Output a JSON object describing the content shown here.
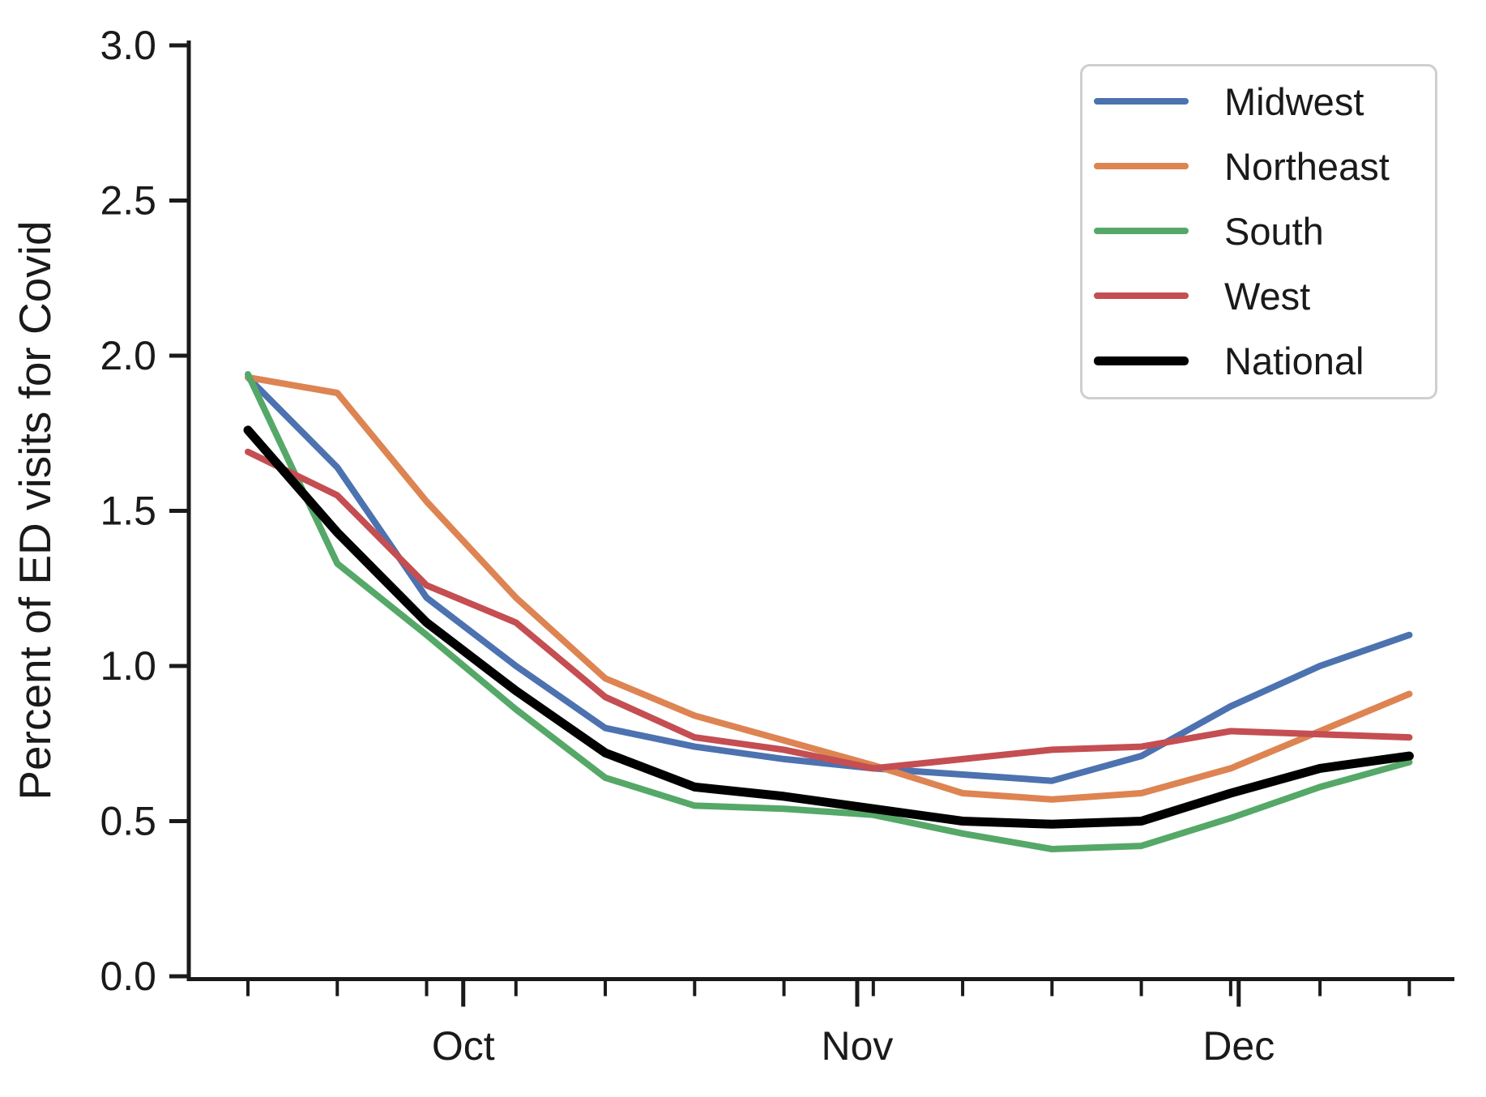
{
  "figure": {
    "background": "#ffffff",
    "axis_color": "#1a1a1a",
    "text_color": "#1a1a1a",
    "legend_border_color": "#cfcfcf"
  },
  "chart_data": {
    "type": "line",
    "title": "",
    "xlabel": "",
    "ylabel": "Percent of ED visits for Covid",
    "ylim": [
      0.0,
      3.0
    ],
    "grid": false,
    "legend_position": "upper right",
    "y_ticks": [
      {
        "value": 0.0,
        "label": "0.0"
      },
      {
        "value": 0.5,
        "label": "0.5"
      },
      {
        "value": 1.0,
        "label": "1.0"
      },
      {
        "value": 1.5,
        "label": "1.5"
      },
      {
        "value": 2.0,
        "label": "2.0"
      },
      {
        "value": 2.5,
        "label": "2.5"
      },
      {
        "value": 3.0,
        "label": "3.0"
      }
    ],
    "x_unit": "weekly data points (14 weeks), shown via minor ticks",
    "x": [
      0,
      1,
      2,
      3,
      4,
      5,
      6,
      7,
      8,
      9,
      10,
      11,
      12,
      13
    ],
    "x_minor_ticks_weeks": [
      0,
      1,
      2,
      3,
      4,
      5,
      6,
      7,
      8,
      9,
      10,
      11,
      12,
      13
    ],
    "x_major_ticks": [
      {
        "label": "Oct",
        "week": 2.41
      },
      {
        "label": "Nov",
        "week": 6.82
      },
      {
        "label": "Dec",
        "week": 11.09
      }
    ],
    "series": [
      {
        "name": "Midwest",
        "color": "#4C72B0",
        "line_width": 8,
        "values": [
          1.93,
          1.64,
          1.22,
          1.0,
          0.8,
          0.74,
          0.7,
          0.67,
          0.65,
          0.63,
          0.71,
          0.87,
          1.0,
          1.1
        ]
      },
      {
        "name": "Northeast",
        "color": "#DD8452",
        "line_width": 8,
        "values": [
          1.93,
          1.88,
          1.53,
          1.22,
          0.96,
          0.84,
          0.76,
          0.68,
          0.59,
          0.57,
          0.59,
          0.67,
          0.79,
          0.91
        ]
      },
      {
        "name": "South",
        "color": "#55A868",
        "line_width": 8,
        "values": [
          1.94,
          1.33,
          1.1,
          0.86,
          0.64,
          0.55,
          0.54,
          0.52,
          0.46,
          0.41,
          0.42,
          0.51,
          0.61,
          0.69
        ]
      },
      {
        "name": "West",
        "color": "#C44E52",
        "line_width": 8,
        "values": [
          1.69,
          1.55,
          1.26,
          1.14,
          0.9,
          0.77,
          0.73,
          0.67,
          0.7,
          0.73,
          0.74,
          0.79,
          0.78,
          0.77
        ]
      },
      {
        "name": "National",
        "color": "#000000",
        "line_width": 11,
        "values": [
          1.76,
          1.43,
          1.14,
          0.92,
          0.72,
          0.61,
          0.58,
          0.54,
          0.5,
          0.49,
          0.5,
          0.59,
          0.67,
          0.71
        ]
      }
    ]
  }
}
